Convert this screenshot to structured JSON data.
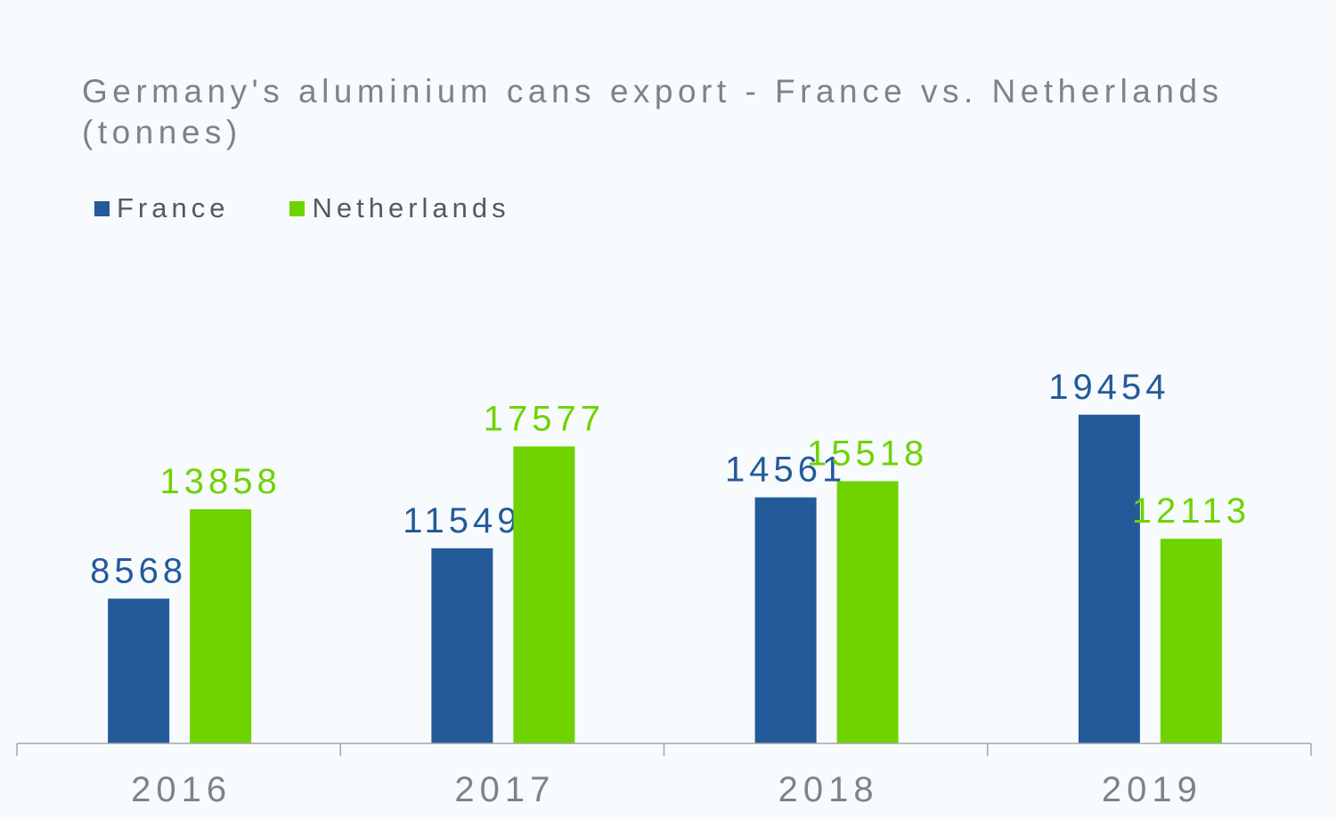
{
  "chart_data": {
    "type": "bar",
    "title": "Germany's aluminium cans export - France vs. Netherlands (tonnes)",
    "categories": [
      "2016",
      "2017",
      "2018",
      "2019"
    ],
    "series": [
      {
        "name": "France",
        "color": "#245a9a",
        "values": [
          8568,
          11549,
          14561,
          19454
        ]
      },
      {
        "name": "Netherlands",
        "color": "#6fd300",
        "values": [
          13858,
          17577,
          15518,
          12113
        ]
      }
    ],
    "ylim": [
      0,
      23000
    ],
    "grid": false,
    "legend_position": "top-left",
    "xlabel": "",
    "ylabel": ""
  }
}
